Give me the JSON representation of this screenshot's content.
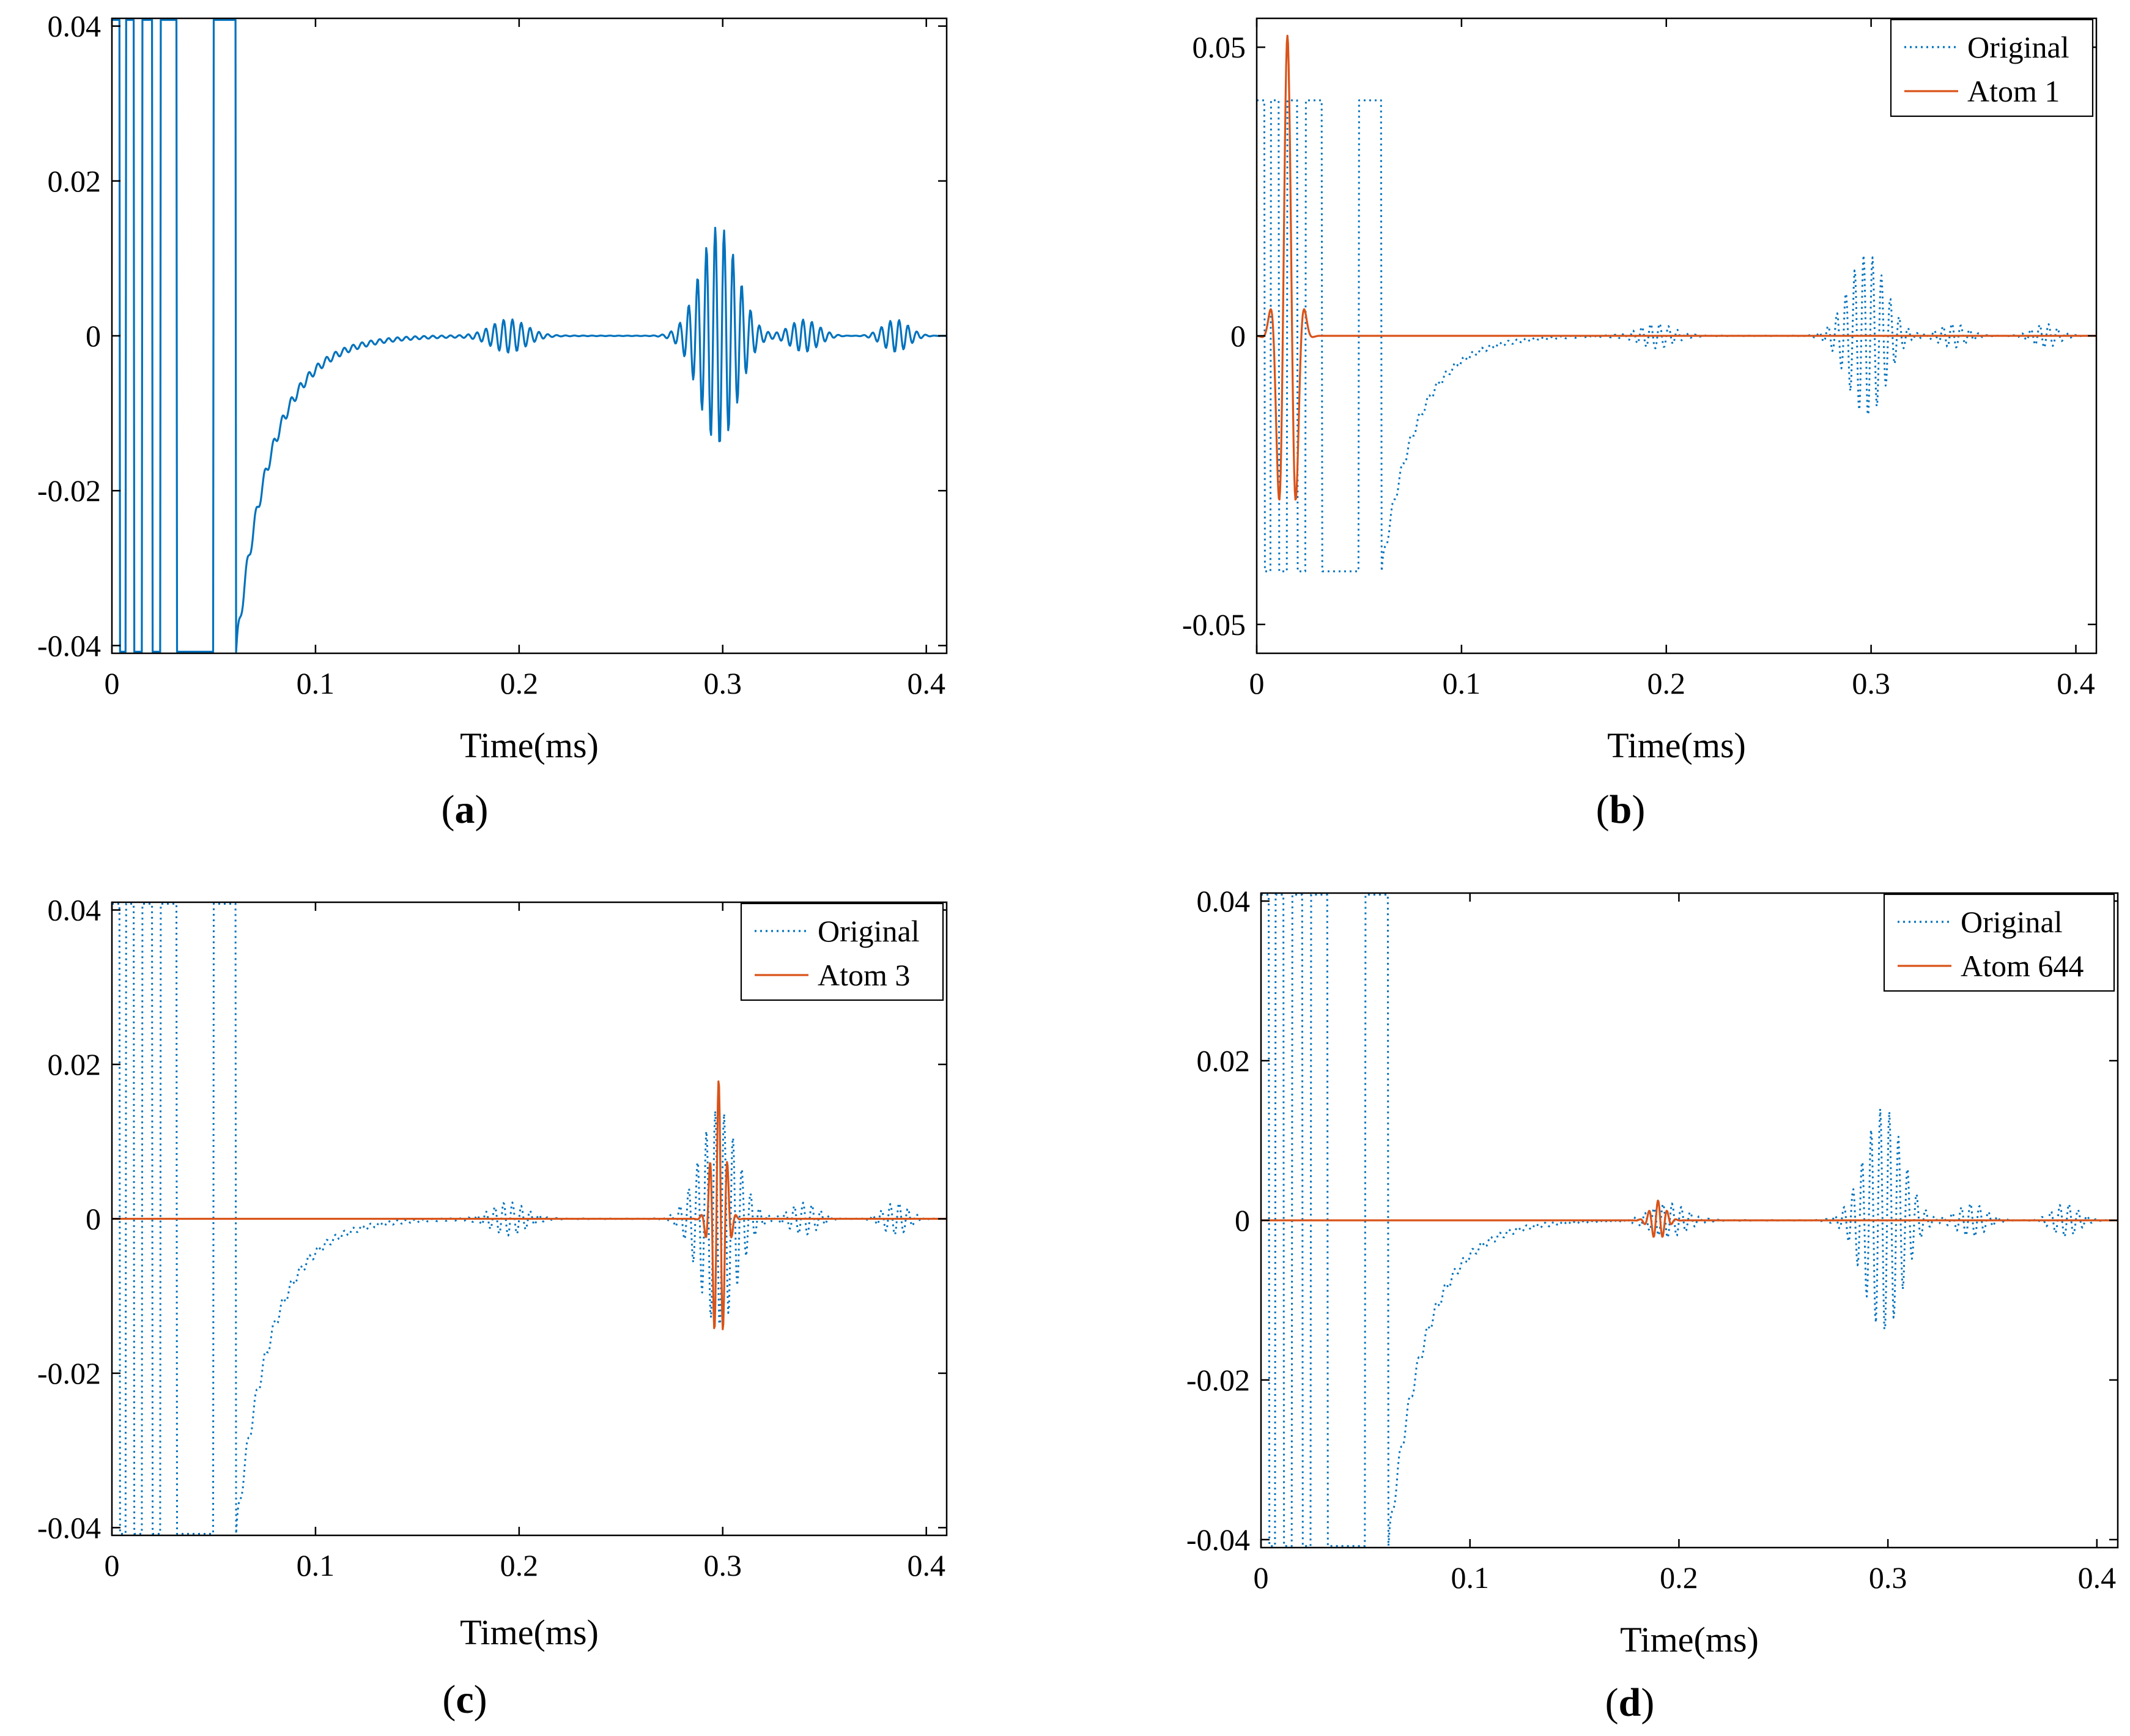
{
  "colors": {
    "original": "#0072BD",
    "atom": "#D95319",
    "axis": "#000000"
  },
  "chart_data": [
    {
      "panel": "a",
      "type": "line",
      "xlabel": "Time(ms)",
      "xlim": [
        0,
        0.41
      ],
      "ylim": [
        -0.041,
        0.041
      ],
      "xticks": [
        0,
        0.1,
        0.2,
        0.3,
        0.4
      ],
      "xtick_labels": [
        "0",
        "0.1",
        "0.2",
        "0.3",
        "0.4"
      ],
      "yticks": [
        -0.04,
        -0.02,
        0,
        0.02,
        0.04
      ],
      "ytick_labels": [
        "-0.04",
        "-0.02",
        "0",
        "0.02",
        "0.04"
      ],
      "label_open": "(",
      "label_letter": "a",
      "label_close": ")",
      "legend": null,
      "series": [
        {
          "name": "Original",
          "role": "original",
          "style": "solid",
          "signal": "original"
        }
      ]
    },
    {
      "panel": "b",
      "type": "line",
      "xlabel": "Time(ms)",
      "xlim": [
        0,
        0.41
      ],
      "ylim": [
        -0.055,
        0.055
      ],
      "xticks": [
        0,
        0.1,
        0.2,
        0.3,
        0.4
      ],
      "xtick_labels": [
        "0",
        "0.1",
        "0.2",
        "0.3",
        "0.4"
      ],
      "yticks": [
        -0.05,
        0,
        0.05
      ],
      "ytick_labels": [
        "-0.05",
        "0",
        "0.05"
      ],
      "label_open": "(",
      "label_letter": "b",
      "label_close": ")",
      "legend": {
        "position": "top-right",
        "entries": [
          "Original",
          "Atom 1"
        ]
      },
      "series": [
        {
          "name": "Original",
          "role": "original",
          "style": "dotted",
          "signal": "original"
        },
        {
          "name": "Atom 1",
          "role": "atom",
          "style": "solid",
          "signal": "atom",
          "center": 0.015,
          "amp": 0.052,
          "freq": 110,
          "sigma": 0.0055,
          "start": 0.0,
          "end": 0.03
        }
      ]
    },
    {
      "panel": "c",
      "type": "line",
      "xlabel": "Time(ms)",
      "xlim": [
        0,
        0.41
      ],
      "ylim": [
        -0.041,
        0.041
      ],
      "xticks": [
        0,
        0.1,
        0.2,
        0.3,
        0.4
      ],
      "xtick_labels": [
        "0",
        "0.1",
        "0.2",
        "0.3",
        "0.4"
      ],
      "yticks": [
        -0.04,
        -0.02,
        0,
        0.02,
        0.04
      ],
      "ytick_labels": [
        "-0.04",
        "-0.02",
        "0",
        "0.02",
        "0.04"
      ],
      "label_open": "(",
      "label_letter": "c",
      "label_close": ")",
      "legend": {
        "position": "top-right",
        "entries": [
          "Original",
          "Atom 3"
        ]
      },
      "series": [
        {
          "name": "Original",
          "role": "original",
          "style": "dotted",
          "signal": "original"
        },
        {
          "name": "Atom 3",
          "role": "atom",
          "style": "solid",
          "signal": "atom",
          "center": 0.298,
          "amp": 0.018,
          "freq": 230,
          "sigma": 0.0045,
          "start": 0.283,
          "end": 0.311
        }
      ]
    },
    {
      "panel": "d",
      "type": "line",
      "xlabel": "Time(ms)",
      "xlim": [
        0,
        0.41
      ],
      "ylim": [
        -0.041,
        0.041
      ],
      "xticks": [
        0,
        0.1,
        0.2,
        0.3,
        0.4
      ],
      "xtick_labels": [
        "0",
        "0.1",
        "0.2",
        "0.3",
        "0.4"
      ],
      "yticks": [
        -0.04,
        -0.02,
        0,
        0.02,
        0.04
      ],
      "ytick_labels": [
        "-0.04",
        "-0.02",
        "0",
        "0.02",
        "0.04"
      ],
      "label_open": "(",
      "label_letter": "d",
      "label_close": ")",
      "legend": {
        "position": "top-right",
        "entries": [
          "Original",
          "Atom 644"
        ]
      },
      "series": [
        {
          "name": "Original",
          "role": "original",
          "style": "dotted",
          "signal": "original"
        },
        {
          "name": "Atom 644",
          "role": "atom",
          "style": "solid",
          "signal": "atom",
          "center": 0.19,
          "amp": 0.0025,
          "freq": 230,
          "sigma": 0.005,
          "start": 0.178,
          "end": 0.205
        }
      ]
    }
  ]
}
